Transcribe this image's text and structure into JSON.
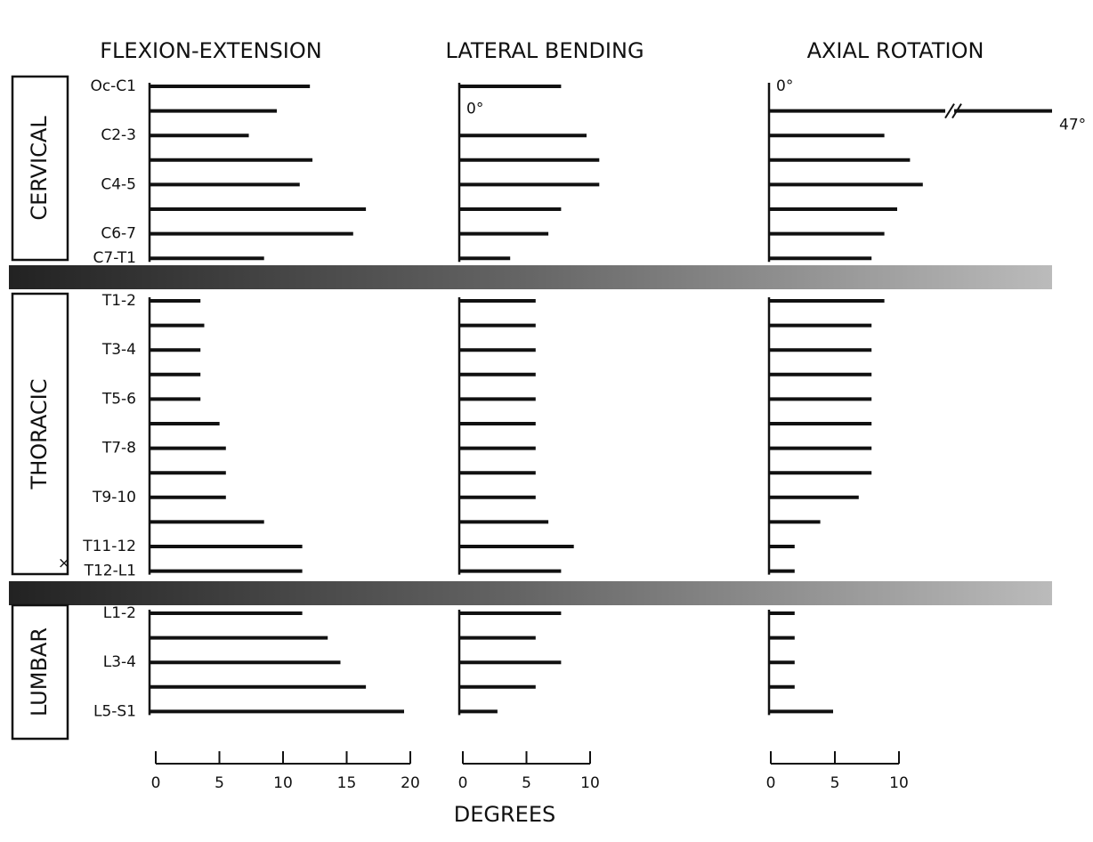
{
  "chart_data": {
    "type": "bar",
    "orientation": "horizontal",
    "color": "#111111",
    "x_label": "DEGREES",
    "groups": [
      {
        "label": "CERVICAL",
        "categories": [
          "Oc-C1",
          null,
          "C2-3",
          null,
          "C4-5",
          null,
          "C6-7",
          "C7-T1"
        ]
      },
      {
        "label": "THORACIC",
        "categories": [
          "T1-2",
          null,
          "T3-4",
          null,
          "T5-6",
          null,
          "T7-8",
          null,
          "T9-10",
          null,
          "T11-12",
          "T12-L1"
        ]
      },
      {
        "label": "LUMBAR",
        "categories": [
          "L1-2",
          null,
          "L3-4",
          null,
          "L5-S1"
        ]
      }
    ],
    "annotations": [
      "×"
    ],
    "panels": [
      {
        "title": "FLEXION-EXTENSION",
        "xlim": [
          0,
          20
        ],
        "xticks": [
          0,
          5,
          10,
          15,
          20
        ],
        "values": [
          12.6,
          10,
          7.8,
          12.8,
          11.8,
          17,
          16,
          9,
          4,
          4.3,
          4,
          4,
          4,
          5.5,
          6,
          6,
          6,
          9,
          12,
          12,
          12,
          14,
          15,
          17,
          20
        ]
      },
      {
        "title": "LATERAL BENDING",
        "xlim": [
          0,
          10
        ],
        "xticks": [
          0,
          5,
          10
        ],
        "values": [
          8,
          0,
          10,
          11,
          11,
          8,
          7,
          4,
          6,
          6,
          6,
          6,
          6,
          6,
          6,
          6,
          6,
          7,
          9,
          8,
          8,
          6,
          8,
          6,
          3
        ],
        "value_labels": [
          null,
          "0°",
          null,
          null,
          null,
          null,
          null,
          null,
          null,
          null,
          null,
          null,
          null,
          null,
          null,
          null,
          null,
          null,
          null,
          null,
          null,
          null,
          null,
          null,
          null
        ]
      },
      {
        "title": "AXIAL ROTATION",
        "xlim": [
          0,
          10
        ],
        "xticks": [
          0,
          5,
          10
        ],
        "values": [
          0,
          47,
          9,
          11,
          12,
          10,
          9,
          8,
          9,
          8,
          8,
          8,
          8,
          8,
          8,
          8,
          7,
          4,
          2,
          2,
          2,
          2,
          2,
          2,
          5
        ],
        "value_labels": [
          "0°",
          "47°",
          null,
          null,
          null,
          null,
          null,
          null,
          null,
          null,
          null,
          null,
          null,
          null,
          null,
          null,
          null,
          null,
          null,
          null,
          null,
          null,
          null,
          null,
          null
        ]
      }
    ]
  }
}
